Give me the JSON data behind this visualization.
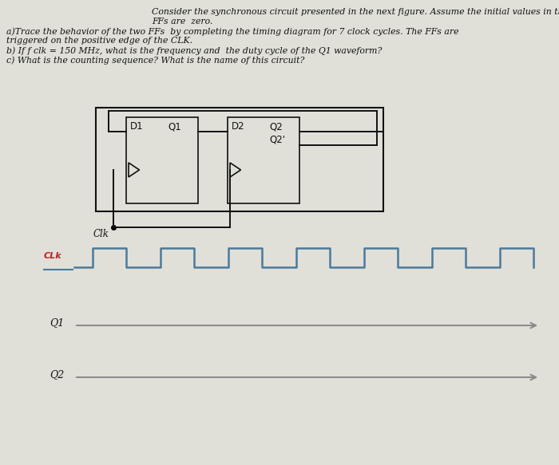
{
  "bg_color": "#e0e0d8",
  "text_color": "#111111",
  "line1": "Consider the synchronous circuit presented in the next figure. Assume the initial values in the",
  "line2": "FFs are  zero.",
  "line3": "a)Trace the behavior of the two FFs  by completing the timing diagram for 7 clock cycles. The FFs are",
  "line4": "triggered on the positive edge of the CLK.",
  "line5": "b) If f clk = 150 MHz, what is the frequency and  the duty cycle of the Q1 waveform?",
  "line6": "c) What is the counting sequence? What is the name of this circuit?",
  "clk_color": "#4a7a9b",
  "arrow_color": "#888888",
  "clk_timing_label": "CLk",
  "clk_timing_label_color": "#bb2222",
  "q1_label": "Q1",
  "q2_label": "Q2",
  "circuit_line_color": "#111111",
  "clk_label_circuit": "Clk",
  "font_size_text": 7.8,
  "font_size_labels": 8.5,
  "font_size_clk_timing": 8.0
}
